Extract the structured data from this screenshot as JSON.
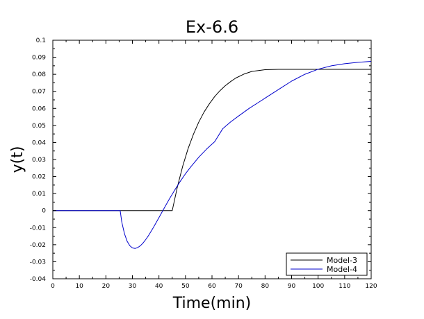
{
  "chart_data": {
    "type": "line",
    "title": "Ex-6.6",
    "xlabel": "Time(min)",
    "ylabel": "y(t)",
    "xlim": [
      0,
      120
    ],
    "ylim": [
      -0.04,
      0.1
    ],
    "xticks": [
      0,
      10,
      20,
      30,
      40,
      50,
      60,
      70,
      80,
      90,
      100,
      110,
      120
    ],
    "yticks": [
      -0.04,
      -0.03,
      -0.02,
      -0.01,
      0,
      0.01,
      0.02,
      0.03,
      0.04,
      0.05,
      0.06,
      0.07,
      0.08,
      0.09,
      0.1
    ],
    "ytick_labels": [
      "-0.04",
      "-0.03",
      "-0.02",
      "-0.01",
      "0",
      "0.01",
      "0.02",
      "0.03",
      "0.04",
      "0.05",
      "0.06",
      "0.07",
      "0.08",
      "0.09",
      "0.1"
    ],
    "grid": false,
    "legend_position": "bottom-right",
    "series": [
      {
        "name": "Model-3",
        "color": "#000000",
        "x": [
          0,
          44.9,
          45,
          47,
          49,
          51,
          53,
          55,
          57,
          59,
          61,
          63,
          65,
          67,
          69,
          72,
          75,
          80,
          85,
          90,
          100,
          110,
          120
        ],
        "y": [
          0,
          0,
          0,
          0.0143,
          0.0263,
          0.0364,
          0.0448,
          0.0519,
          0.0578,
          0.0627,
          0.0669,
          0.0704,
          0.0733,
          0.0757,
          0.0778,
          0.0801,
          0.0817,
          0.0827,
          0.0829,
          0.0829,
          0.0829,
          0.0829,
          0.0829
        ]
      },
      {
        "name": "Model-4",
        "color": "#0000cc",
        "x": [
          0,
          25.4,
          26,
          27,
          28,
          29,
          30,
          31,
          32,
          33,
          34,
          35,
          36,
          38,
          40,
          42,
          44,
          46,
          48,
          50,
          52,
          55,
          58,
          61,
          64,
          67,
          70,
          74,
          78,
          82,
          86,
          90,
          95,
          100,
          105,
          110,
          115,
          120
        ],
        "y": [
          0,
          0,
          -0.0067,
          -0.0136,
          -0.018,
          -0.0206,
          -0.0219,
          -0.0222,
          -0.0217,
          -0.0206,
          -0.019,
          -0.017,
          -0.0148,
          -0.0097,
          -0.0041,
          0.0015,
          0.007,
          0.0122,
          0.0171,
          0.0216,
          0.0257,
          0.0313,
          0.0362,
          0.0404,
          0.048,
          0.052,
          0.0555,
          0.06,
          0.064,
          0.068,
          0.072,
          0.076,
          0.08,
          0.083,
          0.085,
          0.0862,
          0.087,
          0.0876
        ]
      }
    ]
  }
}
